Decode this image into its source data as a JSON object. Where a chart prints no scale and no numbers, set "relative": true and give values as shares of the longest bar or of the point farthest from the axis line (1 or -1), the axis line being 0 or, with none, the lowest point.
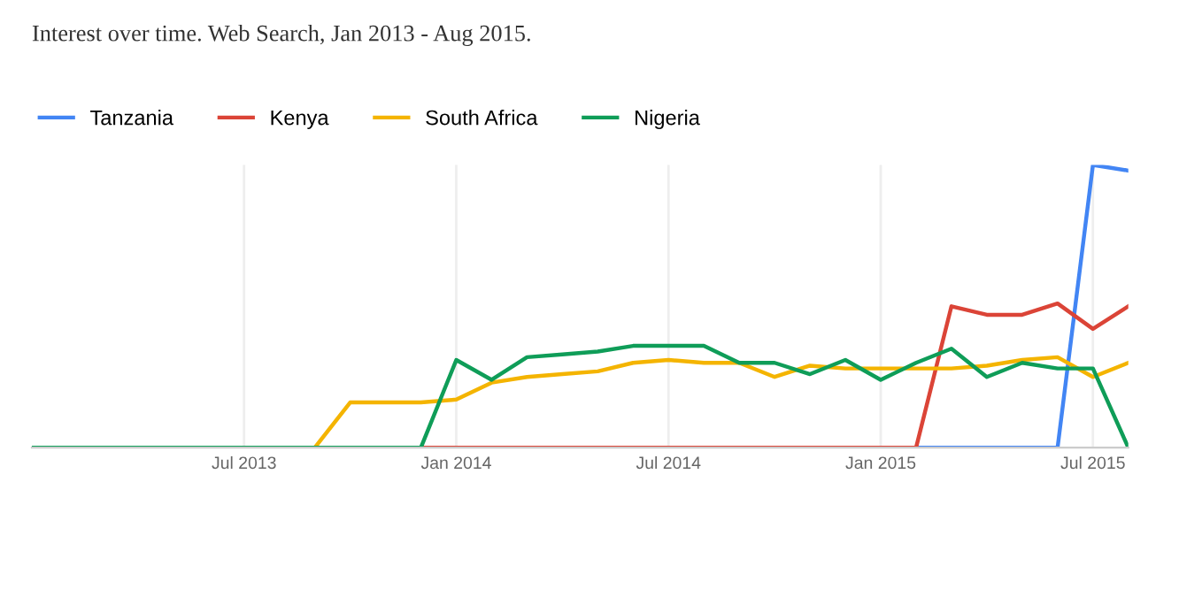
{
  "chart_data": {
    "type": "line",
    "title": "Interest over time. Web Search, Jan 2013 - Aug 2015.",
    "relative": true,
    "x": [
      "2013-01",
      "2013-02",
      "2013-03",
      "2013-04",
      "2013-05",
      "2013-06",
      "2013-07",
      "2013-08",
      "2013-09",
      "2013-10",
      "2013-11",
      "2013-12",
      "2014-01",
      "2014-02",
      "2014-03",
      "2014-04",
      "2014-05",
      "2014-06",
      "2014-07",
      "2014-08",
      "2014-09",
      "2014-10",
      "2014-11",
      "2014-12",
      "2015-01",
      "2015-02",
      "2015-03",
      "2015-04",
      "2015-05",
      "2015-06",
      "2015-07",
      "2015-08"
    ],
    "series": [
      {
        "name": "Tanzania",
        "color": "#4285f4",
        "values": [
          null,
          null,
          null,
          null,
          null,
          null,
          null,
          null,
          null,
          null,
          null,
          null,
          null,
          null,
          null,
          null,
          null,
          null,
          null,
          null,
          null,
          null,
          null,
          null,
          null,
          0,
          0,
          0,
          0,
          0,
          1.0,
          0.98
        ]
      },
      {
        "name": "Kenya",
        "color": "#db4437",
        "values": [
          null,
          null,
          null,
          null,
          null,
          null,
          null,
          null,
          null,
          null,
          null,
          0,
          0,
          0,
          0,
          0,
          0,
          0,
          0,
          0,
          0,
          0,
          0,
          0,
          0,
          0,
          0.5,
          0.47,
          0.47,
          0.51,
          0.42,
          0.5
        ]
      },
      {
        "name": "South Africa",
        "color": "#f4b400",
        "values": [
          null,
          null,
          null,
          null,
          null,
          null,
          null,
          null,
          0,
          0.16,
          0.16,
          0.16,
          0.17,
          0.23,
          0.25,
          0.26,
          0.27,
          0.3,
          0.31,
          0.3,
          0.3,
          0.25,
          0.29,
          0.28,
          0.28,
          0.28,
          0.28,
          0.29,
          0.31,
          0.32,
          0.25,
          0.3
        ]
      },
      {
        "name": "Nigeria",
        "color": "#0f9d58",
        "values": [
          0,
          0,
          0,
          0,
          0,
          0,
          0,
          0,
          0,
          0,
          0,
          0,
          0.31,
          0.24,
          0.32,
          0.33,
          0.34,
          0.36,
          0.36,
          0.36,
          0.3,
          0.3,
          0.26,
          0.31,
          0.24,
          0.3,
          0.35,
          0.25,
          0.3,
          0.28,
          0.28,
          0
        ]
      }
    ],
    "xlim": [
      "2013-01",
      "2015-08"
    ],
    "xticks": [
      {
        "value": "2013-07",
        "label": "Jul 2013"
      },
      {
        "value": "2014-01",
        "label": "Jan 2014"
      },
      {
        "value": "2014-07",
        "label": "Jul 2014"
      },
      {
        "value": "2015-01",
        "label": "Jan 2015"
      },
      {
        "value": "2015-07",
        "label": "Jul 2015"
      }
    ],
    "grid": "x",
    "legend": "top left",
    "marker": "none",
    "line_style": "solid"
  }
}
